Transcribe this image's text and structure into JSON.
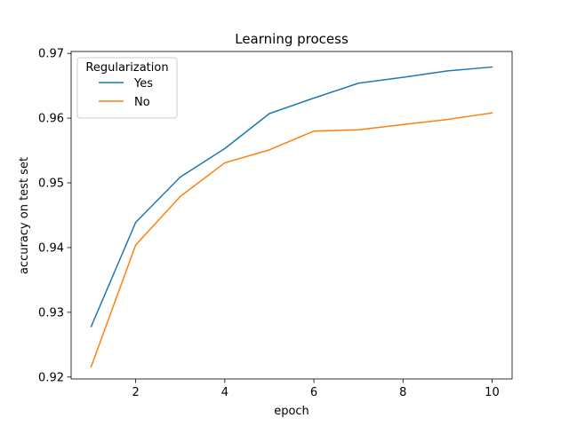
{
  "chart_data": {
    "type": "line",
    "title": "Learning process",
    "xlabel": "epoch",
    "ylabel": "accuracy on test set",
    "xlim": [
      0.55,
      10.45
    ],
    "ylim": [
      0.9197,
      0.9703
    ],
    "xticks": [
      2,
      4,
      6,
      8,
      10
    ],
    "xtick_labels": [
      "2",
      "4",
      "6",
      "8",
      "10"
    ],
    "yticks": [
      0.92,
      0.93,
      0.94,
      0.95,
      0.96,
      0.97
    ],
    "ytick_labels": [
      "0.92",
      "0.93",
      "0.94",
      "0.95",
      "0.96",
      "0.97"
    ],
    "legend": {
      "title": "Regularization",
      "placement": "upper-left"
    },
    "grid": false,
    "x": [
      1,
      2,
      3,
      4,
      5,
      6,
      7,
      8,
      9,
      10
    ],
    "series": [
      {
        "name": "Yes",
        "color": "#1f77b4",
        "values": [
          0.9278,
          0.9439,
          0.9509,
          0.9553,
          0.9607,
          0.9631,
          0.9654,
          0.9663,
          0.9673,
          0.9679
        ]
      },
      {
        "name": "No",
        "color": "#ff7f0e",
        "values": [
          0.9216,
          0.9404,
          0.9479,
          0.9531,
          0.9551,
          0.958,
          0.9582,
          0.959,
          0.9598,
          0.9608
        ]
      }
    ]
  }
}
